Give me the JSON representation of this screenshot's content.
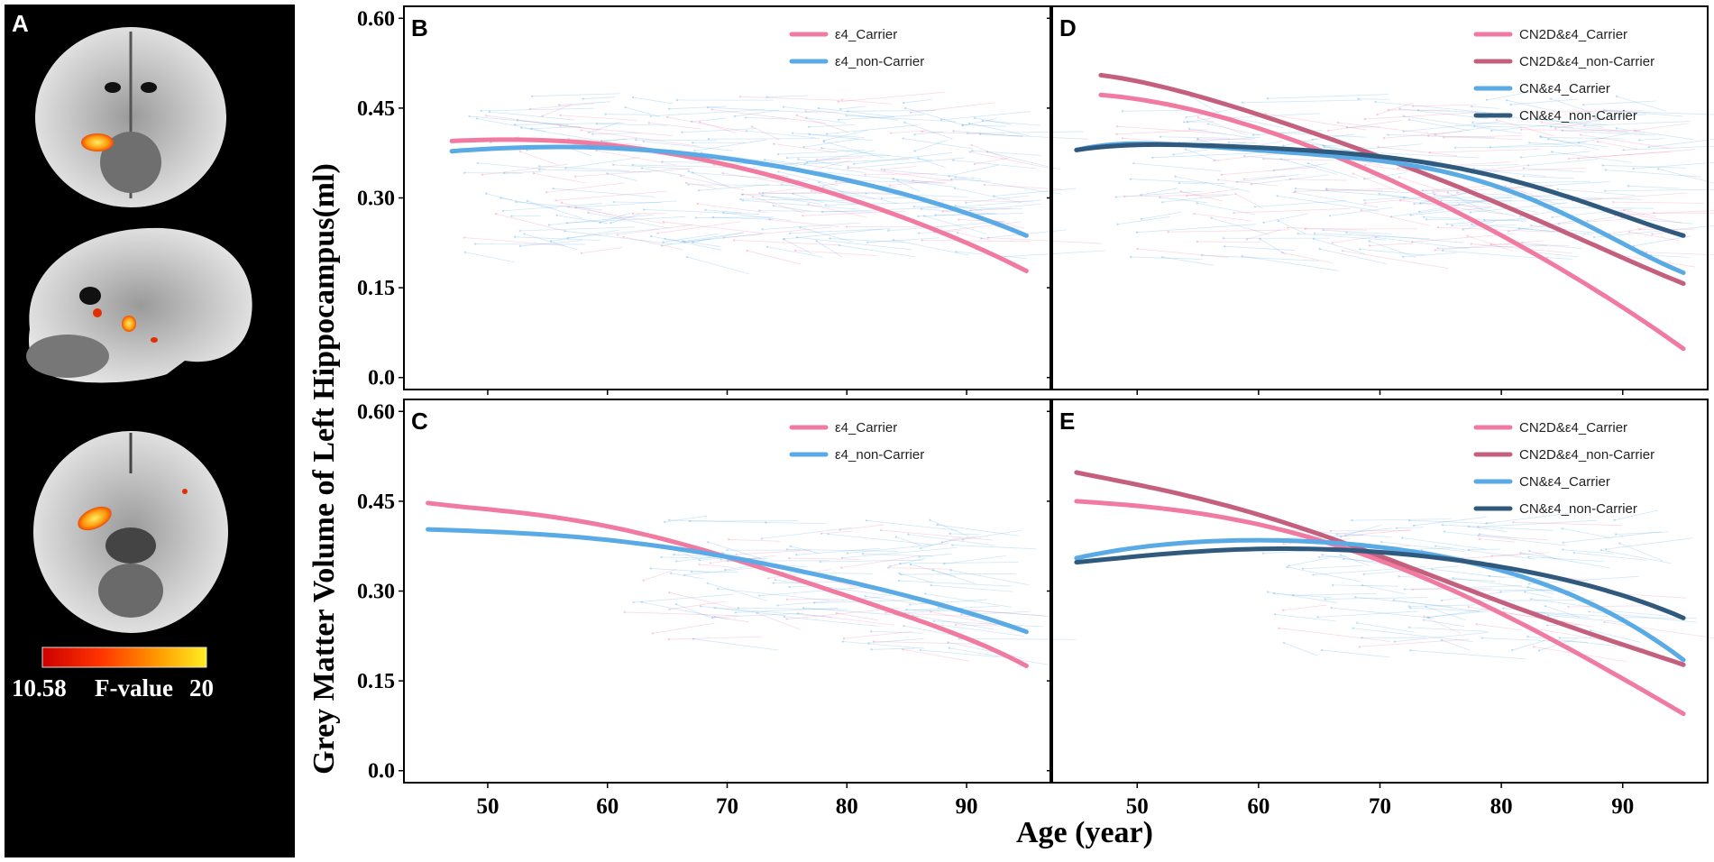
{
  "panel_a": {
    "letter": "A",
    "colorbar": {
      "min_label": "10.58",
      "title": "F-value",
      "max_label": "20",
      "min_value": 10.58,
      "max_value": 20,
      "colors": [
        "#cc0000",
        "#ff3300",
        "#ff9900",
        "#ffee22"
      ]
    },
    "slices": [
      "coronal",
      "sagittal",
      "axial"
    ]
  },
  "shared": {
    "ylabel": "Grey Matter Volume of Left Hippocampus(ml)",
    "xlabel": "Age (year)"
  },
  "colors": {
    "e4_carrier": "#f07aa0",
    "e4_non_carrier": "#5aaae6",
    "cn2d_carrier": "#f07aa0",
    "cn2d_non_carrier": "#c4607e",
    "cn_carrier": "#5aaae6",
    "cn_non_carrier": "#2f5a7e"
  },
  "chart_data": [
    {
      "id": "B",
      "letter": "B",
      "type": "line",
      "xlim": [
        43,
        97
      ],
      "ylim": [
        -0.02,
        0.62
      ],
      "xticks": [
        50,
        60,
        70,
        80,
        90
      ],
      "yticks": [
        0.0,
        0.15,
        0.3,
        0.45,
        0.6
      ],
      "ytick_labels": [
        "0.0",
        "0.15",
        "0.30",
        "0.45",
        "0.60"
      ],
      "show_xtick_labels": false,
      "show_ytick_labels": true,
      "legend": [
        {
          "label": "ε4_Carrier",
          "color": "#f07aa0"
        },
        {
          "label": "ε4_non-Carrier",
          "color": "#5aaae6"
        }
      ],
      "trajectory_region": {
        "age_range": [
          48,
          93
        ],
        "volume_range": [
          0.2,
          0.47
        ]
      },
      "series": [
        {
          "name": "ε4_Carrier",
          "color": "#f07aa0",
          "x": [
            47,
            55,
            65,
            75,
            85,
            95
          ],
          "y": [
            0.395,
            0.396,
            0.375,
            0.33,
            0.265,
            0.178
          ]
        },
        {
          "name": "ε4_non-Carrier",
          "color": "#5aaae6",
          "x": [
            47,
            55,
            65,
            75,
            85,
            95
          ],
          "y": [
            0.378,
            0.385,
            0.377,
            0.35,
            0.305,
            0.237
          ]
        }
      ]
    },
    {
      "id": "C",
      "letter": "C",
      "type": "line",
      "xlim": [
        43,
        97
      ],
      "ylim": [
        -0.02,
        0.62
      ],
      "xticks": [
        50,
        60,
        70,
        80,
        90
      ],
      "xtick_labels": [
        "50",
        "60",
        "70",
        "80",
        "90"
      ],
      "yticks": [
        0.0,
        0.15,
        0.3,
        0.45,
        0.6
      ],
      "ytick_labels": [
        "0.0",
        "0.15",
        "0.30",
        "0.45",
        "0.60"
      ],
      "show_xtick_labels": true,
      "show_ytick_labels": true,
      "legend": [
        {
          "label": "ε4_Carrier",
          "color": "#f07aa0"
        },
        {
          "label": "ε4_non-Carrier",
          "color": "#5aaae6"
        }
      ],
      "trajectory_region": {
        "age_range": [
          60,
          90
        ],
        "volume_range": [
          0.2,
          0.42
        ]
      },
      "series": [
        {
          "name": "ε4_Carrier",
          "color": "#f07aa0",
          "x": [
            45,
            55,
            65,
            75,
            85,
            95
          ],
          "y": [
            0.447,
            0.425,
            0.385,
            0.325,
            0.258,
            0.175
          ]
        },
        {
          "name": "ε4_non-Carrier",
          "color": "#5aaae6",
          "x": [
            45,
            55,
            65,
            75,
            85,
            95
          ],
          "y": [
            0.403,
            0.394,
            0.373,
            0.338,
            0.292,
            0.232
          ]
        }
      ]
    },
    {
      "id": "D",
      "letter": "D",
      "type": "line",
      "xlim": [
        43,
        97
      ],
      "ylim": [
        -0.02,
        0.62
      ],
      "xticks": [
        50,
        60,
        70,
        80,
        90
      ],
      "yticks": [
        0.0,
        0.15,
        0.3,
        0.45,
        0.6
      ],
      "show_xtick_labels": false,
      "show_ytick_labels": false,
      "legend": [
        {
          "label": "CN2D&ε4_Carrier",
          "color": "#f07aa0"
        },
        {
          "label": "CN2D&ε4_non-Carrier",
          "color": "#c4607e"
        },
        {
          "label": "CN&ε4_Carrier",
          "color": "#5aaae6"
        },
        {
          "label": "CN&ε4_non-Carrier",
          "color": "#2f5a7e"
        }
      ],
      "trajectory_region": {
        "age_range": [
          48,
          93
        ],
        "volume_range": [
          0.2,
          0.47
        ]
      },
      "series": [
        {
          "name": "CN2D&ε4_Carrier",
          "color": "#f07aa0",
          "x": [
            47,
            55,
            65,
            75,
            85,
            95
          ],
          "y": [
            0.472,
            0.445,
            0.38,
            0.29,
            0.18,
            0.048
          ]
        },
        {
          "name": "CN2D&ε4_non-Carrier",
          "color": "#c4607e",
          "x": [
            47,
            55,
            65,
            75,
            85,
            95
          ],
          "y": [
            0.505,
            0.47,
            0.405,
            0.33,
            0.245,
            0.157
          ]
        },
        {
          "name": "CN&ε4_Carrier",
          "color": "#5aaae6",
          "x": [
            45,
            55,
            65,
            75,
            85,
            95
          ],
          "y": [
            0.38,
            0.387,
            0.372,
            0.345,
            0.275,
            0.175
          ]
        },
        {
          "name": "CN&ε4_non-Carrier",
          "color": "#2f5a7e",
          "x": [
            45,
            55,
            65,
            75,
            85,
            95
          ],
          "y": [
            0.38,
            0.388,
            0.378,
            0.355,
            0.305,
            0.237
          ]
        }
      ]
    },
    {
      "id": "E",
      "letter": "E",
      "type": "line",
      "xlim": [
        43,
        97
      ],
      "ylim": [
        -0.02,
        0.62
      ],
      "xticks": [
        50,
        60,
        70,
        80,
        90
      ],
      "xtick_labels": [
        "50",
        "60",
        "70",
        "80",
        "90"
      ],
      "yticks": [
        0.0,
        0.15,
        0.3,
        0.45,
        0.6
      ],
      "show_xtick_labels": true,
      "show_ytick_labels": false,
      "legend": [
        {
          "label": "CN2D&ε4_Carrier",
          "color": "#f07aa0"
        },
        {
          "label": "CN2D&ε4_non-Carrier",
          "color": "#c4607e"
        },
        {
          "label": "CN&ε4_Carrier",
          "color": "#5aaae6"
        },
        {
          "label": "CN&ε4_non-Carrier",
          "color": "#2f5a7e"
        }
      ],
      "trajectory_region": {
        "age_range": [
          60,
          90
        ],
        "volume_range": [
          0.2,
          0.42
        ]
      },
      "series": [
        {
          "name": "CN2D&ε4_Carrier",
          "color": "#f07aa0",
          "x": [
            45,
            55,
            65,
            75,
            85,
            95
          ],
          "y": [
            0.45,
            0.43,
            0.385,
            0.31,
            0.21,
            0.095
          ]
        },
        {
          "name": "CN2D&ε4_non-Carrier",
          "color": "#c4607e",
          "x": [
            45,
            55,
            65,
            75,
            85,
            95
          ],
          "y": [
            0.498,
            0.455,
            0.395,
            0.32,
            0.245,
            0.177
          ]
        },
        {
          "name": "CN&ε4_Carrier",
          "color": "#5aaae6",
          "x": [
            45,
            55,
            65,
            75,
            85,
            95
          ],
          "y": [
            0.355,
            0.382,
            0.382,
            0.358,
            0.3,
            0.185
          ]
        },
        {
          "name": "CN&ε4_non-Carrier",
          "color": "#2f5a7e",
          "x": [
            45,
            55,
            65,
            75,
            85,
            95
          ],
          "y": [
            0.348,
            0.366,
            0.37,
            0.355,
            0.32,
            0.255
          ]
        }
      ]
    }
  ]
}
